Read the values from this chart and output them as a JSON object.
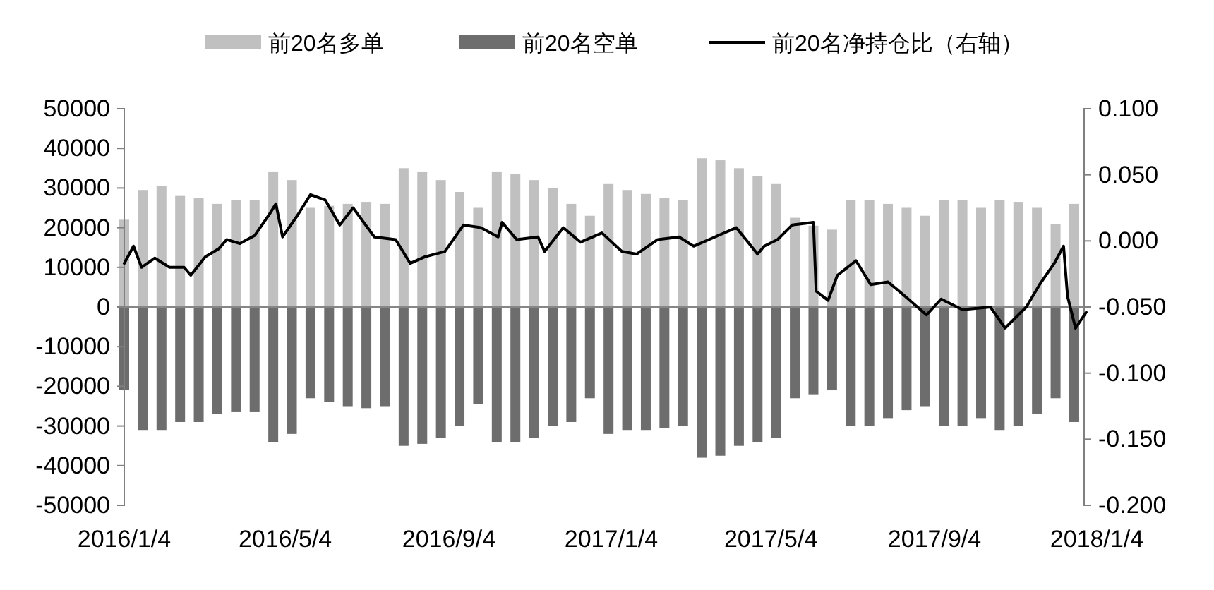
{
  "chart_data": {
    "type": "bar",
    "stacked": true,
    "legend": "top",
    "x": [
      "2016-01-04",
      "2016-01-18",
      "2016-02-01",
      "2016-02-15",
      "2016-02-29",
      "2016-03-14",
      "2016-03-28",
      "2016-04-11",
      "2016-04-25",
      "2016-05-09",
      "2016-05-23",
      "2016-06-06",
      "2016-06-20",
      "2016-07-04",
      "2016-07-18",
      "2016-08-01",
      "2016-08-15",
      "2016-08-29",
      "2016-09-12",
      "2016-09-26",
      "2016-10-10",
      "2016-10-24",
      "2016-11-07",
      "2016-11-21",
      "2016-12-05",
      "2016-12-19",
      "2017-01-02",
      "2017-01-16",
      "2017-01-30",
      "2017-02-13",
      "2017-02-27",
      "2017-03-13",
      "2017-03-27",
      "2017-04-10",
      "2017-04-24",
      "2017-05-08",
      "2017-05-22",
      "2017-06-05",
      "2017-06-19",
      "2017-07-03",
      "2017-07-17",
      "2017-07-31",
      "2017-08-14",
      "2017-08-28",
      "2017-09-11",
      "2017-09-25",
      "2017-10-09",
      "2017-10-23",
      "2017-11-06",
      "2017-11-20",
      "2017-12-04",
      "2017-12-18"
    ],
    "xlim": [
      "2016-01-04",
      "2018-01-04"
    ],
    "xticks": [
      {
        "value": "2016-01-04",
        "label": "2016/1/4"
      },
      {
        "value": "2016-05-04",
        "label": "2016/5/4"
      },
      {
        "value": "2016-09-04",
        "label": "2016/9/4"
      },
      {
        "value": "2017-01-04",
        "label": "2017/1/4"
      },
      {
        "value": "2017-05-04",
        "label": "2017/5/4"
      },
      {
        "value": "2017-09-04",
        "label": "2017/9/4"
      },
      {
        "value": "2018-01-04",
        "label": "2018/1/4"
      }
    ],
    "ylim": [
      -50000,
      50000
    ],
    "yticks": [
      -50000,
      -40000,
      -30000,
      -20000,
      -10000,
      0,
      10000,
      20000,
      30000,
      40000,
      50000
    ],
    "y2lim": [
      -0.2,
      0.1
    ],
    "y2ticks": [
      {
        "value": -0.2,
        "label": "-0.200"
      },
      {
        "value": -0.15,
        "label": "-0.150"
      },
      {
        "value": -0.1,
        "label": "-0.100"
      },
      {
        "value": -0.05,
        "label": "-0.050"
      },
      {
        "value": 0,
        "label": "0.000"
      },
      {
        "value": 0.05,
        "label": "0.050"
      },
      {
        "value": 0.1,
        "label": "0.100"
      }
    ],
    "series": [
      {
        "name": "前20名多单",
        "color": "#c0c0c0",
        "values": [
          22000,
          29500,
          30500,
          28000,
          27500,
          26000,
          27000,
          27000,
          34000,
          32000,
          25000,
          25500,
          26000,
          26500,
          26000,
          35000,
          34000,
          32000,
          29000,
          25000,
          34000,
          33500,
          32000,
          30000,
          26000,
          23000,
          31000,
          29500,
          28500,
          27500,
          27000,
          37500,
          37000,
          35000,
          33000,
          31000,
          22500,
          20500,
          19500,
          27000,
          27000,
          26000,
          25000,
          23000,
          27000,
          27000,
          25000,
          27000,
          26500,
          25000,
          21000,
          26000
        ]
      },
      {
        "name": "前20名空单",
        "color": "#6d6d6d",
        "values": [
          -21000,
          -31000,
          -31000,
          -29000,
          -29000,
          -27000,
          -26500,
          -26500,
          -34000,
          -32000,
          -23000,
          -24000,
          -25000,
          -25500,
          -25000,
          -35000,
          -34500,
          -33000,
          -30000,
          -24500,
          -34000,
          -34000,
          -33000,
          -30000,
          -29000,
          -23000,
          -32000,
          -31000,
          -31000,
          -30500,
          -30000,
          -38000,
          -37500,
          -35000,
          -34000,
          -33000,
          -23000,
          -22000,
          -21000,
          -30000,
          -30000,
          -28000,
          -26000,
          -25000,
          -30000,
          -30000,
          -28000,
          -31000,
          -30000,
          -27000,
          -23000,
          -29000
        ]
      },
      {
        "name": "前20名净持仓比（右轴）",
        "type": "line",
        "axis": "y2",
        "color": "#000000",
        "x": [
          "2016-01-04",
          "2016-01-11",
          "2016-01-17",
          "2016-01-27",
          "2016-02-07",
          "2016-02-18",
          "2016-02-23",
          "2016-03-05",
          "2016-03-15",
          "2016-03-21",
          "2016-03-31",
          "2016-04-11",
          "2016-04-22",
          "2016-04-27",
          "2016-05-02",
          "2016-05-13",
          "2016-05-23",
          "2016-06-03",
          "2016-06-14",
          "2016-06-24",
          "2016-07-10",
          "2016-07-26",
          "2016-08-06",
          "2016-08-17",
          "2016-09-01",
          "2016-09-15",
          "2016-09-28",
          "2016-10-11",
          "2016-10-14",
          "2016-10-25",
          "2016-11-10",
          "2016-11-15",
          "2016-11-29",
          "2016-12-12",
          "2016-12-28",
          "2017-01-12",
          "2017-01-23",
          "2017-02-08",
          "2017-02-24",
          "2017-03-07",
          "2017-03-23",
          "2017-04-08",
          "2017-04-24",
          "2017-04-29",
          "2017-05-09",
          "2017-05-20",
          "2017-06-05",
          "2017-06-07",
          "2017-06-16",
          "2017-06-23",
          "2017-07-07",
          "2017-07-18",
          "2017-07-31",
          "2017-08-13",
          "2017-08-29",
          "2017-09-09",
          "2017-09-25",
          "2017-10-16",
          "2017-10-27",
          "2017-11-12",
          "2017-11-22",
          "2017-12-03",
          "2017-12-10",
          "2017-12-13",
          "2017-12-19",
          "2017-12-27"
        ],
        "values": [
          -0.017,
          -0.004,
          -0.02,
          -0.013,
          -0.02,
          -0.02,
          -0.026,
          -0.012,
          -0.006,
          0.001,
          -0.002,
          0.004,
          0.02,
          0.028,
          0.003,
          0.019,
          0.035,
          0.031,
          0.012,
          0.025,
          0.003,
          0.001,
          -0.017,
          -0.012,
          -0.008,
          0.012,
          0.01,
          0.003,
          0.014,
          0.001,
          0.003,
          -0.008,
          0.01,
          -0.001,
          0.006,
          -0.008,
          -0.01,
          0.001,
          0.003,
          -0.004,
          0.003,
          0.01,
          -0.01,
          -0.004,
          0.001,
          0.012,
          0.014,
          -0.038,
          -0.045,
          -0.026,
          -0.015,
          -0.033,
          -0.031,
          -0.042,
          -0.056,
          -0.044,
          -0.052,
          -0.05,
          -0.066,
          -0.05,
          -0.033,
          -0.017,
          -0.004,
          -0.042,
          -0.066,
          -0.054
        ]
      }
    ]
  }
}
